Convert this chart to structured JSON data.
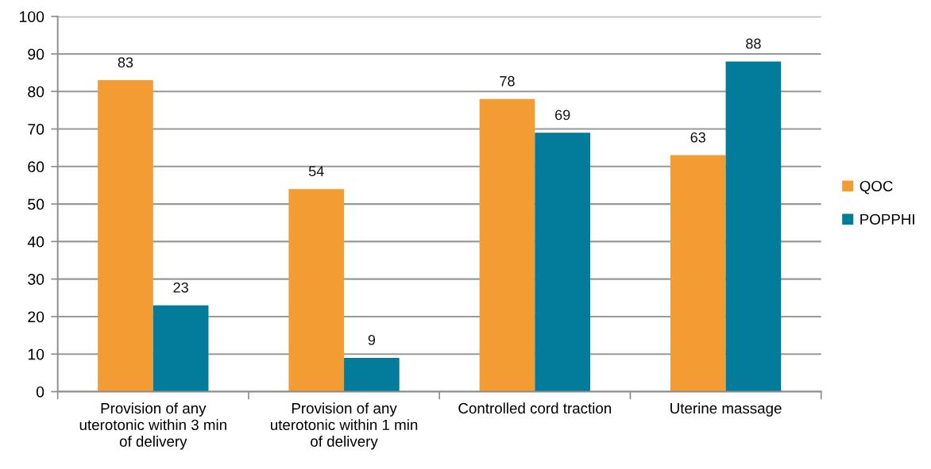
{
  "chart_data": {
    "type": "bar",
    "categories": [
      "Provision of any uterotonic within 3 min of delivery",
      "Provision of any uterotonic within 1 min of delivery",
      "Controlled cord traction",
      "Uterine massage"
    ],
    "series": [
      {
        "name": "QOC",
        "color": "#f39c34",
        "values": [
          83,
          54,
          78,
          63
        ]
      },
      {
        "name": "POPPHI",
        "color": "#037b9b",
        "values": [
          23,
          9,
          69,
          88
        ]
      }
    ],
    "ylim": [
      0,
      100
    ],
    "yticks": [
      0,
      10,
      20,
      30,
      40,
      50,
      60,
      70,
      80,
      90,
      100
    ],
    "grid": "y",
    "legend": "right",
    "data_labels": true
  }
}
